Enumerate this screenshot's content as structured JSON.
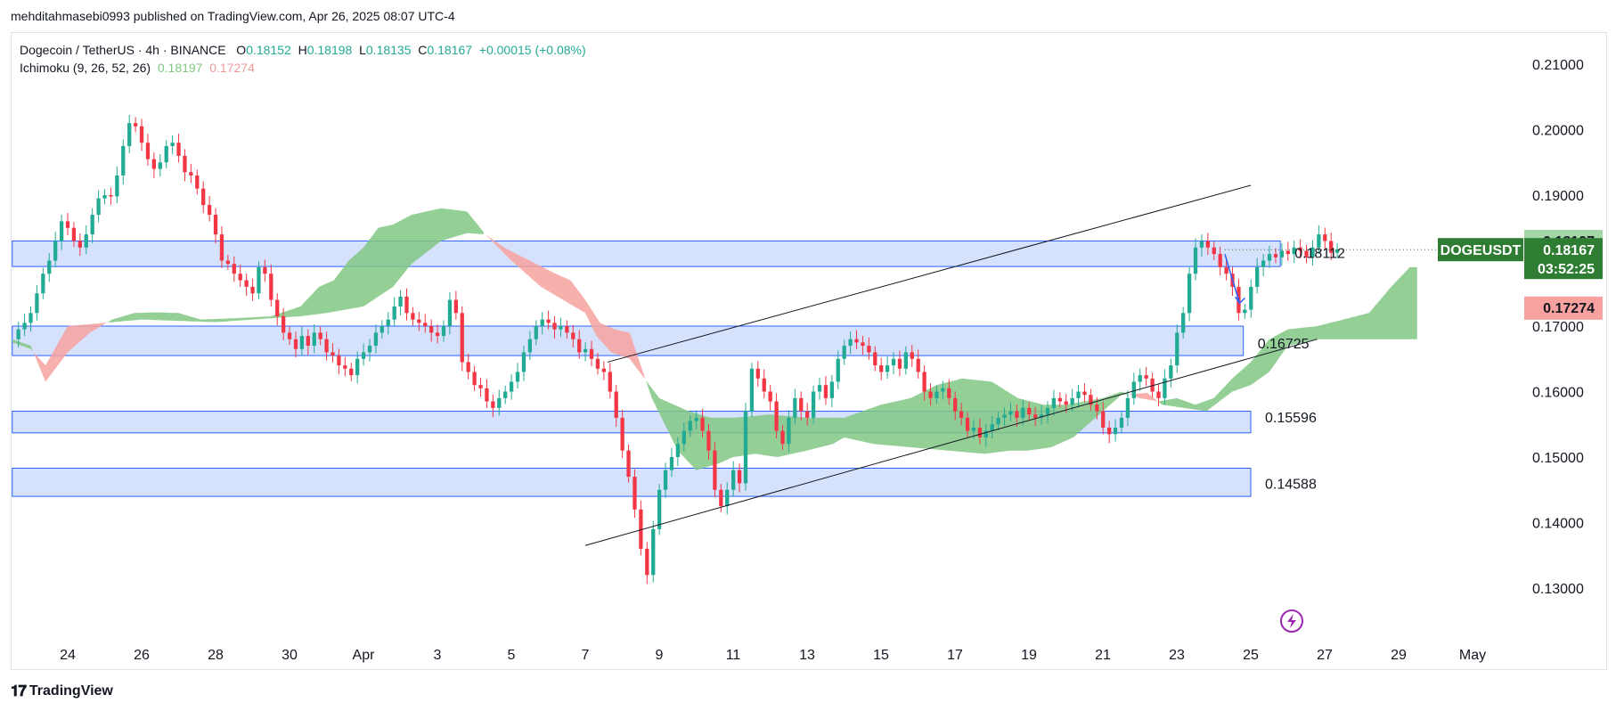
{
  "header": {
    "published": "mehditahmasebi0993 published on TradingView.com, Apr 26, 2025 08:07 UTC-4"
  },
  "legend": {
    "symbol": "Dogecoin / TetherUS · 4h · BINANCE",
    "o_label": "O",
    "o": "0.18152",
    "h_label": "H",
    "h": "0.18198",
    "l_label": "L",
    "l": "0.18135",
    "c_label": "C",
    "c": "0.18167",
    "change": "+0.00015 (+0.08%)",
    "indicator": "Ichimoku (9, 26, 52, 26)",
    "ichimoku_a": "0.18197",
    "ichimoku_b": "0.17274"
  },
  "brand": {
    "name": "TradingView",
    "logo_icon": "tradingview-logo-icon"
  },
  "colors": {
    "up": "#22ab94",
    "down": "#f23645",
    "cloud_bull": "#81c784",
    "cloud_bear": "#f7a29f",
    "zone_fill": "#cfdcfc",
    "zone_border": "#2962ff",
    "price_tag": "#2e7d32",
    "arrow": "#2962ff"
  },
  "chart_data": {
    "type": "candlestick",
    "symbol": "DOGEUSDT",
    "yaxis": {
      "ticks": [
        0.21,
        0.2,
        0.19,
        0.18,
        0.17,
        0.16,
        0.15,
        0.14,
        0.13
      ],
      "tick_labels": [
        "0.21000",
        "0.20000",
        "0.19000",
        "0.18000",
        "0.17000",
        "0.16000",
        "0.15000",
        "0.14000",
        "0.13000"
      ]
    },
    "xaxis": {
      "ticks": [
        "Mar 24",
        "Mar 26",
        "Mar 28",
        "Mar 30",
        "Apr 1",
        "Apr 3",
        "Apr 5",
        "Apr 7",
        "Apr 9",
        "Apr 11",
        "Apr 13",
        "Apr 15",
        "Apr 17",
        "Apr 19",
        "Apr 21",
        "Apr 23",
        "Apr 25",
        "Apr 27",
        "Apr 29",
        "May 1"
      ],
      "tick_labels": [
        "24",
        "26",
        "28",
        "30",
        "Apr",
        "3",
        "5",
        "7",
        "9",
        "11",
        "13",
        "15",
        "17",
        "19",
        "21",
        "23",
        "25",
        "27",
        "29",
        "May"
      ]
    },
    "price_scale": {
      "top": 0.21,
      "bottom": 0.13
    },
    "last_price": {
      "symbol_label": "DOGEUSDT",
      "value": "0.18167",
      "countdown": "03:52:25"
    },
    "axis_tags": [
      {
        "value": "0.18197",
        "kind": "ichimoku_a"
      },
      {
        "value": "0.17274",
        "kind": "ichimoku_b"
      }
    ],
    "zones": [
      {
        "top": 0.183,
        "bottom": 0.1791,
        "from_day": -1.5,
        "to_day": 32.8,
        "label": "0.18112",
        "label_price": 0.18112
      },
      {
        "top": 0.17,
        "bottom": 0.1655,
        "from_day": -1.5,
        "to_day": 31.8,
        "label": "0.16725",
        "label_price": 0.16725
      },
      {
        "top": 0.157,
        "bottom": 0.1537,
        "from_day": -1.5,
        "to_day": 32.0,
        "label": "0.15596",
        "label_price": 0.15596
      },
      {
        "top": 0.1483,
        "bottom": 0.144,
        "from_day": -1.5,
        "to_day": 32.0,
        "label": "0.14588",
        "label_price": 0.14588
      }
    ],
    "trendlines": [
      {
        "from": [
          14.0,
          0.1365
        ],
        "to": [
          33.8,
          0.168
        ]
      },
      {
        "from": [
          14.6,
          0.1645
        ],
        "to": [
          32.0,
          0.1915
        ]
      }
    ],
    "projection_arrow": {
      "from": [
        31.3,
        0.181
      ],
      "to": [
        31.7,
        0.1735
      ]
    },
    "cloud_a": [
      [
        -1.5,
        0.168
      ],
      [
        -1.0,
        0.167
      ],
      [
        -0.6,
        0.1615
      ],
      [
        0.0,
        0.166
      ],
      [
        0.6,
        0.169
      ],
      [
        1.2,
        0.171
      ],
      [
        1.8,
        0.172
      ],
      [
        2.4,
        0.1721
      ],
      [
        3.0,
        0.172
      ],
      [
        3.6,
        0.171
      ],
      [
        4.5,
        0.1712
      ],
      [
        5.5,
        0.1715
      ],
      [
        6.3,
        0.173
      ],
      [
        6.8,
        0.176
      ],
      [
        7.2,
        0.177
      ],
      [
        7.6,
        0.18
      ],
      [
        8.0,
        0.182
      ],
      [
        8.4,
        0.185
      ],
      [
        8.8,
        0.1855
      ],
      [
        9.3,
        0.187
      ],
      [
        10.1,
        0.188
      ],
      [
        10.8,
        0.1875
      ],
      [
        11.3,
        0.184
      ],
      [
        12.0,
        0.18
      ],
      [
        12.8,
        0.176
      ],
      [
        13.4,
        0.174
      ],
      [
        14.0,
        0.172
      ],
      [
        14.3,
        0.1685
      ],
      [
        14.7,
        0.166
      ],
      [
        15.2,
        0.165
      ],
      [
        16.0,
        0.159
      ],
      [
        16.8,
        0.157
      ],
      [
        17.4,
        0.156
      ],
      [
        18.0,
        0.156
      ],
      [
        19.0,
        0.1565
      ],
      [
        20.0,
        0.156
      ],
      [
        21.0,
        0.156
      ],
      [
        22.0,
        0.158
      ],
      [
        22.8,
        0.159
      ],
      [
        23.5,
        0.161
      ],
      [
        24.2,
        0.162
      ],
      [
        25.0,
        0.1615
      ],
      [
        25.7,
        0.159
      ],
      [
        26.4,
        0.158
      ],
      [
        27.0,
        0.158
      ],
      [
        27.5,
        0.1585
      ],
      [
        28.0,
        0.159
      ],
      [
        28.5,
        0.16
      ],
      [
        29.0,
        0.159
      ],
      [
        29.5,
        0.1585
      ],
      [
        30.0,
        0.159
      ],
      [
        30.5,
        0.158
      ],
      [
        31.0,
        0.159
      ],
      [
        31.5,
        0.162
      ],
      [
        32.0,
        0.1645
      ],
      [
        32.5,
        0.168
      ],
      [
        33.0,
        0.1695
      ],
      [
        33.8,
        0.17
      ],
      [
        34.5,
        0.171
      ],
      [
        35.2,
        0.172
      ],
      [
        35.8,
        0.176
      ],
      [
        36.3,
        0.179
      ],
      [
        36.5,
        0.179
      ]
    ],
    "cloud_b": [
      [
        -1.5,
        0.1675
      ],
      [
        -1.0,
        0.1665
      ],
      [
        -0.6,
        0.164
      ],
      [
        0.0,
        0.17
      ],
      [
        1.0,
        0.1705
      ],
      [
        2.0,
        0.171
      ],
      [
        3.0,
        0.1708
      ],
      [
        4.0,
        0.1706
      ],
      [
        5.0,
        0.171
      ],
      [
        5.5,
        0.1712
      ],
      [
        6.3,
        0.1715
      ],
      [
        7.0,
        0.172
      ],
      [
        8.0,
        0.173
      ],
      [
        8.8,
        0.176
      ],
      [
        9.3,
        0.1795
      ],
      [
        10.1,
        0.183
      ],
      [
        10.8,
        0.1842
      ],
      [
        11.3,
        0.184
      ],
      [
        11.8,
        0.182
      ],
      [
        12.5,
        0.18
      ],
      [
        13.2,
        0.178
      ],
      [
        13.6,
        0.177
      ],
      [
        14.0,
        0.174
      ],
      [
        14.4,
        0.1705
      ],
      [
        14.8,
        0.1695
      ],
      [
        15.2,
        0.169
      ],
      [
        15.8,
        0.159
      ],
      [
        16.5,
        0.151
      ],
      [
        17.0,
        0.148
      ],
      [
        17.6,
        0.149
      ],
      [
        18.0,
        0.15
      ],
      [
        18.6,
        0.1505
      ],
      [
        19.2,
        0.15
      ],
      [
        20.0,
        0.151
      ],
      [
        20.7,
        0.152
      ],
      [
        21.0,
        0.153
      ],
      [
        21.8,
        0.152
      ],
      [
        22.8,
        0.1515
      ],
      [
        23.8,
        0.151
      ],
      [
        24.8,
        0.1505
      ],
      [
        25.5,
        0.151
      ],
      [
        26.0,
        0.151
      ],
      [
        26.6,
        0.1515
      ],
      [
        27.2,
        0.153
      ],
      [
        27.8,
        0.156
      ],
      [
        28.5,
        0.1595
      ],
      [
        29.2,
        0.1598
      ],
      [
        29.6,
        0.158
      ],
      [
        30.2,
        0.1575
      ],
      [
        30.8,
        0.157
      ],
      [
        31.5,
        0.16
      ],
      [
        32.0,
        0.161
      ],
      [
        32.5,
        0.163
      ],
      [
        33.0,
        0.167
      ],
      [
        33.8,
        0.168
      ],
      [
        34.6,
        0.168
      ],
      [
        35.2,
        0.168
      ],
      [
        35.8,
        0.168
      ],
      [
        36.5,
        0.168
      ]
    ],
    "candles_stride_days": 0.1667,
    "candles_start_day": -1.5,
    "closes": [
      0.168,
      0.1695,
      0.1705,
      0.172,
      0.175,
      0.178,
      0.18,
      0.183,
      0.186,
      0.185,
      0.183,
      0.182,
      0.184,
      0.187,
      0.1895,
      0.19,
      0.1898,
      0.193,
      0.1975,
      0.201,
      0.2005,
      0.198,
      0.1955,
      0.194,
      0.195,
      0.1975,
      0.198,
      0.196,
      0.1935,
      0.193,
      0.191,
      0.1885,
      0.187,
      0.184,
      0.18,
      0.1795,
      0.178,
      0.177,
      0.176,
      0.175,
      0.179,
      0.178,
      0.174,
      0.1715,
      0.169,
      0.168,
      0.1665,
      0.1685,
      0.167,
      0.169,
      0.168,
      0.166,
      0.1655,
      0.164,
      0.1635,
      0.1625,
      0.165,
      0.166,
      0.167,
      0.169,
      0.17,
      0.171,
      0.173,
      0.1745,
      0.172,
      0.171,
      0.1705,
      0.17,
      0.169,
      0.1685,
      0.17,
      0.174,
      0.172,
      0.1645,
      0.163,
      0.161,
      0.1605,
      0.1585,
      0.1575,
      0.159,
      0.16,
      0.1615,
      0.163,
      0.166,
      0.168,
      0.17,
      0.171,
      0.1705,
      0.1695,
      0.17,
      0.169,
      0.168,
      0.166,
      0.1665,
      0.165,
      0.1635,
      0.163,
      0.16,
      0.156,
      0.151,
      0.147,
      0.142,
      0.136,
      0.132,
      0.139,
      0.145,
      0.148,
      0.15,
      0.152,
      0.154,
      0.1555,
      0.156,
      0.154,
      0.151,
      0.145,
      0.1425,
      0.145,
      0.148,
      0.146,
      0.157,
      0.1635,
      0.162,
      0.16,
      0.1585,
      0.154,
      0.152,
      0.156,
      0.159,
      0.157,
      0.156,
      0.16,
      0.161,
      0.159,
      0.1615,
      0.165,
      0.167,
      0.168,
      0.1675,
      0.167,
      0.166,
      0.164,
      0.163,
      0.164,
      0.165,
      0.1635,
      0.166,
      0.165,
      0.163,
      0.16,
      0.159,
      0.16,
      0.1605,
      0.159,
      0.157,
      0.156,
      0.154,
      0.1545,
      0.153,
      0.154,
      0.155,
      0.156,
      0.1565,
      0.157,
      0.156,
      0.1575,
      0.1565,
      0.156,
      0.1565,
      0.1575,
      0.159,
      0.1585,
      0.158,
      0.159,
      0.16,
      0.1595,
      0.158,
      0.157,
      0.1545,
      0.1535,
      0.1545,
      0.156,
      0.159,
      0.1615,
      0.1625,
      0.162,
      0.16,
      0.159,
      0.162,
      0.164,
      0.169,
      0.172,
      0.178,
      0.182,
      0.183,
      0.182,
      0.181,
      0.179,
      0.178,
      0.176,
      0.172,
      0.1725,
      0.176,
      0.179,
      0.18,
      0.181,
      0.1805,
      0.1815,
      0.181,
      0.182,
      0.1815,
      0.1805,
      0.182,
      0.184,
      0.183,
      0.1812,
      0.1817
    ]
  }
}
